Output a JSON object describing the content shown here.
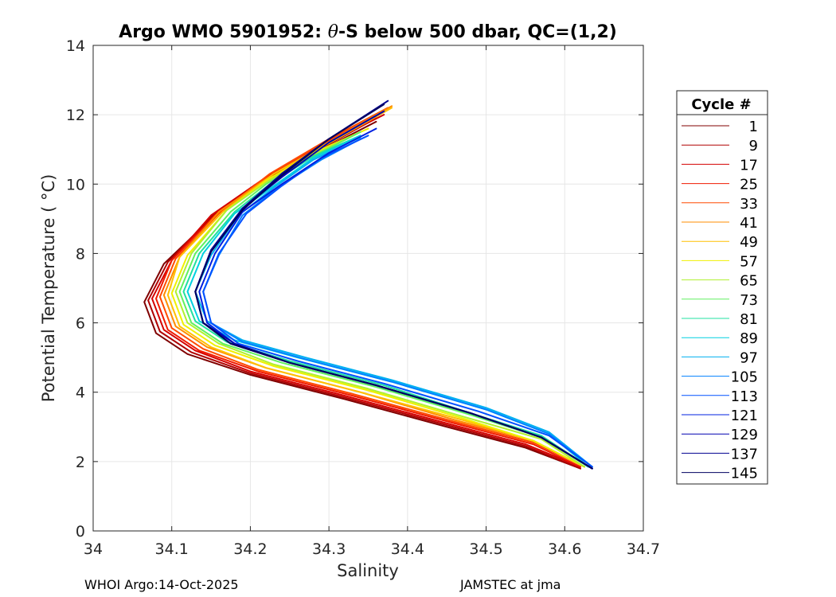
{
  "chart_data": {
    "type": "line",
    "title": {
      "prefix": "Argo WMO 5901952: ",
      "theta": "θ",
      "suffix": "-S below 500 dbar,  QC=(1,2)"
    },
    "xlabel": "Salinity",
    "ylabel": "Potential Temperature ( °C)",
    "xlim": [
      34.0,
      34.7
    ],
    "ylim": [
      0,
      14
    ],
    "xticks": [
      34,
      34.1,
      34.2,
      34.3,
      34.4,
      34.5,
      34.6,
      34.7
    ],
    "xtick_labels": [
      "34",
      "34.1",
      "34.2",
      "34.3",
      "34.4",
      "34.5",
      "34.6",
      "34.7"
    ],
    "yticks": [
      0,
      2,
      4,
      6,
      8,
      10,
      12,
      14
    ],
    "ytick_labels": [
      "0",
      "2",
      "4",
      "6",
      "8",
      "10",
      "12",
      "14"
    ],
    "grid": true,
    "legend_position": "right",
    "legend": {
      "title": "Cycle #",
      "entries": [
        {
          "label": "1",
          "color": "#800000"
        },
        {
          "label": "9",
          "color": "#b00000"
        },
        {
          "label": "17",
          "color": "#d40000"
        },
        {
          "label": "25",
          "color": "#f01a00"
        },
        {
          "label": "33",
          "color": "#ff4a00"
        },
        {
          "label": "41",
          "color": "#ff8c00"
        },
        {
          "label": "49",
          "color": "#ffc000"
        },
        {
          "label": "57",
          "color": "#f0f000"
        },
        {
          "label": "65",
          "color": "#b0f030"
        },
        {
          "label": "73",
          "color": "#60f060"
        },
        {
          "label": "81",
          "color": "#20e0a0"
        },
        {
          "label": "89",
          "color": "#00d0e0"
        },
        {
          "label": "97",
          "color": "#00b0f0"
        },
        {
          "label": "105",
          "color": "#0080ff"
        },
        {
          "label": "113",
          "color": "#0050ff"
        },
        {
          "label": "121",
          "color": "#0020e0"
        },
        {
          "label": "129",
          "color": "#0000b0"
        },
        {
          "label": "137",
          "color": "#000090"
        },
        {
          "label": "145",
          "color": "#000060"
        }
      ]
    },
    "series": [
      {
        "name": "1",
        "color": "#800000",
        "x": [
          34.36,
          34.3,
          34.22,
          34.15,
          34.09,
          34.065,
          34.08,
          34.12,
          34.2,
          34.32,
          34.45,
          34.55,
          34.62
        ],
        "y": [
          11.8,
          11.1,
          10.1,
          9.0,
          7.7,
          6.6,
          5.7,
          5.1,
          4.5,
          3.8,
          3.0,
          2.4,
          1.8
        ]
      },
      {
        "name": "9",
        "color": "#b00000",
        "x": [
          34.36,
          34.3,
          34.22,
          34.15,
          34.095,
          34.07,
          34.085,
          34.125,
          34.2,
          34.32,
          34.45,
          34.55,
          34.62
        ],
        "y": [
          11.9,
          11.15,
          10.15,
          9.05,
          7.75,
          6.65,
          5.75,
          5.15,
          4.55,
          3.85,
          3.05,
          2.45,
          1.8
        ]
      },
      {
        "name": "17",
        "color": "#d40000",
        "x": [
          34.37,
          34.3,
          34.22,
          34.15,
          34.1,
          34.075,
          34.09,
          34.13,
          34.2,
          34.32,
          34.45,
          34.55,
          34.62
        ],
        "y": [
          12.0,
          11.2,
          10.2,
          9.1,
          7.8,
          6.7,
          5.8,
          5.2,
          4.6,
          3.9,
          3.1,
          2.5,
          1.85
        ]
      },
      {
        "name": "25",
        "color": "#f01a00",
        "x": [
          34.37,
          34.3,
          34.225,
          34.155,
          34.1,
          34.08,
          34.095,
          34.135,
          34.21,
          34.33,
          34.46,
          34.56,
          34.62
        ],
        "y": [
          12.1,
          11.25,
          10.25,
          9.1,
          7.8,
          6.7,
          5.8,
          5.2,
          4.6,
          3.9,
          3.1,
          2.5,
          1.85
        ]
      },
      {
        "name": "33",
        "color": "#ff4a00",
        "x": [
          34.375,
          34.3,
          34.225,
          34.16,
          34.105,
          34.085,
          34.1,
          34.14,
          34.21,
          34.33,
          34.46,
          34.56,
          34.625
        ],
        "y": [
          12.2,
          11.3,
          10.3,
          9.15,
          7.85,
          6.75,
          5.85,
          5.25,
          4.65,
          3.95,
          3.15,
          2.55,
          1.85
        ]
      },
      {
        "name": "41",
        "color": "#ff8c00",
        "x": [
          34.38,
          34.31,
          34.23,
          34.16,
          34.11,
          34.09,
          34.105,
          34.145,
          34.22,
          34.34,
          34.46,
          34.56,
          34.625
        ],
        "y": [
          12.25,
          11.35,
          10.3,
          9.2,
          7.9,
          6.8,
          5.9,
          5.3,
          4.7,
          4.0,
          3.2,
          2.6,
          1.85
        ]
      },
      {
        "name": "49",
        "color": "#ffc000",
        "x": [
          34.38,
          34.31,
          34.23,
          34.165,
          34.11,
          34.095,
          34.11,
          34.15,
          34.22,
          34.34,
          34.47,
          34.56,
          34.625
        ],
        "y": [
          12.2,
          11.3,
          10.3,
          9.2,
          7.9,
          6.8,
          5.9,
          5.3,
          4.7,
          4.0,
          3.2,
          2.6,
          1.85
        ]
      },
      {
        "name": "57",
        "color": "#f0f000",
        "x": [
          34.35,
          34.28,
          34.22,
          34.17,
          34.12,
          34.1,
          34.115,
          34.155,
          34.23,
          34.35,
          34.47,
          34.56,
          34.625
        ],
        "y": [
          11.6,
          10.9,
          10.1,
          9.25,
          7.95,
          6.85,
          5.95,
          5.35,
          4.75,
          4.05,
          3.25,
          2.6,
          1.85
        ]
      },
      {
        "name": "65",
        "color": "#b0f030",
        "x": [
          34.34,
          34.28,
          34.22,
          34.17,
          34.125,
          34.105,
          34.12,
          34.16,
          34.23,
          34.35,
          34.47,
          34.57,
          34.625
        ],
        "y": [
          11.5,
          10.85,
          10.05,
          9.25,
          8.0,
          6.9,
          6.0,
          5.4,
          4.8,
          4.1,
          3.3,
          2.65,
          1.85
        ]
      },
      {
        "name": "73",
        "color": "#60f060",
        "x": [
          34.34,
          34.28,
          34.22,
          34.175,
          34.13,
          34.11,
          34.125,
          34.165,
          34.24,
          34.36,
          34.48,
          34.57,
          34.63
        ],
        "y": [
          11.5,
          10.8,
          10.0,
          9.2,
          8.0,
          6.9,
          6.0,
          5.4,
          4.85,
          4.15,
          3.35,
          2.7,
          1.85
        ]
      },
      {
        "name": "81",
        "color": "#20e0a0",
        "x": [
          34.34,
          34.28,
          34.225,
          34.18,
          34.135,
          34.115,
          34.13,
          34.17,
          34.25,
          34.37,
          34.48,
          34.57,
          34.63
        ],
        "y": [
          11.4,
          10.8,
          10.0,
          9.2,
          8.0,
          6.9,
          6.05,
          5.45,
          4.9,
          4.2,
          3.4,
          2.75,
          1.85
        ]
      },
      {
        "name": "89",
        "color": "#00d0e0",
        "x": [
          34.34,
          34.28,
          34.23,
          34.18,
          34.14,
          34.12,
          34.135,
          34.18,
          34.26,
          34.38,
          34.5,
          34.58,
          34.63
        ],
        "y": [
          11.4,
          10.75,
          9.95,
          9.15,
          8.0,
          6.9,
          6.05,
          5.5,
          5.0,
          4.3,
          3.5,
          2.8,
          1.85
        ]
      },
      {
        "name": "97",
        "color": "#00b0f0",
        "x": [
          34.34,
          34.28,
          34.23,
          34.185,
          34.15,
          34.13,
          34.145,
          34.19,
          34.27,
          34.38,
          34.5,
          34.58,
          34.635
        ],
        "y": [
          11.35,
          10.7,
          9.9,
          9.1,
          7.95,
          6.9,
          6.05,
          5.5,
          5.0,
          4.35,
          3.55,
          2.85,
          1.85
        ]
      },
      {
        "name": "105",
        "color": "#0080ff",
        "x": [
          34.34,
          34.29,
          34.235,
          34.19,
          34.16,
          34.14,
          34.15,
          34.19,
          34.27,
          34.38,
          34.5,
          34.58,
          34.635
        ],
        "y": [
          11.3,
          10.7,
          9.9,
          9.1,
          7.95,
          6.9,
          6.0,
          5.45,
          4.95,
          4.3,
          3.5,
          2.8,
          1.85
        ]
      },
      {
        "name": "113",
        "color": "#0050ff",
        "x": [
          34.35,
          34.29,
          34.24,
          34.195,
          34.16,
          34.14,
          34.15,
          34.185,
          34.26,
          34.37,
          34.49,
          34.58,
          34.635
        ],
        "y": [
          11.4,
          10.75,
          9.95,
          9.15,
          8.0,
          6.9,
          6.0,
          5.4,
          4.9,
          4.25,
          3.45,
          2.75,
          1.85
        ]
      },
      {
        "name": "121",
        "color": "#0020e0",
        "x": [
          34.36,
          34.3,
          34.24,
          34.19,
          34.155,
          34.135,
          34.145,
          34.18,
          34.25,
          34.36,
          34.48,
          34.57,
          34.635
        ],
        "y": [
          11.6,
          10.9,
          10.0,
          9.2,
          8.0,
          6.9,
          6.0,
          5.4,
          4.85,
          4.2,
          3.4,
          2.7,
          1.8
        ]
      },
      {
        "name": "129",
        "color": "#0000b0",
        "x": [
          34.37,
          34.3,
          34.24,
          34.19,
          34.15,
          34.13,
          34.14,
          34.18,
          34.25,
          34.36,
          34.48,
          34.57,
          34.635
        ],
        "y": [
          12.1,
          11.2,
          10.2,
          9.3,
          8.1,
          6.9,
          6.0,
          5.4,
          4.85,
          4.2,
          3.4,
          2.7,
          1.8
        ]
      },
      {
        "name": "137",
        "color": "#000090",
        "x": [
          34.375,
          34.3,
          34.24,
          34.19,
          34.15,
          34.13,
          34.14,
          34.175,
          34.25,
          34.36,
          34.48,
          34.57,
          34.635
        ],
        "y": [
          12.4,
          11.3,
          10.3,
          9.3,
          8.1,
          6.9,
          6.0,
          5.4,
          4.85,
          4.2,
          3.4,
          2.7,
          1.8
        ]
      },
      {
        "name": "145",
        "color": "#000060",
        "x": [
          34.37,
          34.3,
          34.24,
          34.19,
          34.15,
          34.13,
          34.14,
          34.175,
          34.25,
          34.36,
          34.48,
          34.57,
          34.635
        ],
        "y": [
          12.3,
          11.3,
          10.25,
          9.25,
          8.05,
          6.9,
          6.0,
          5.4,
          4.85,
          4.2,
          3.4,
          2.7,
          1.8
        ]
      }
    ]
  },
  "footer": {
    "left": "WHOI Argo:14-Oct-2025",
    "right": "JAMSTEC at jma"
  }
}
